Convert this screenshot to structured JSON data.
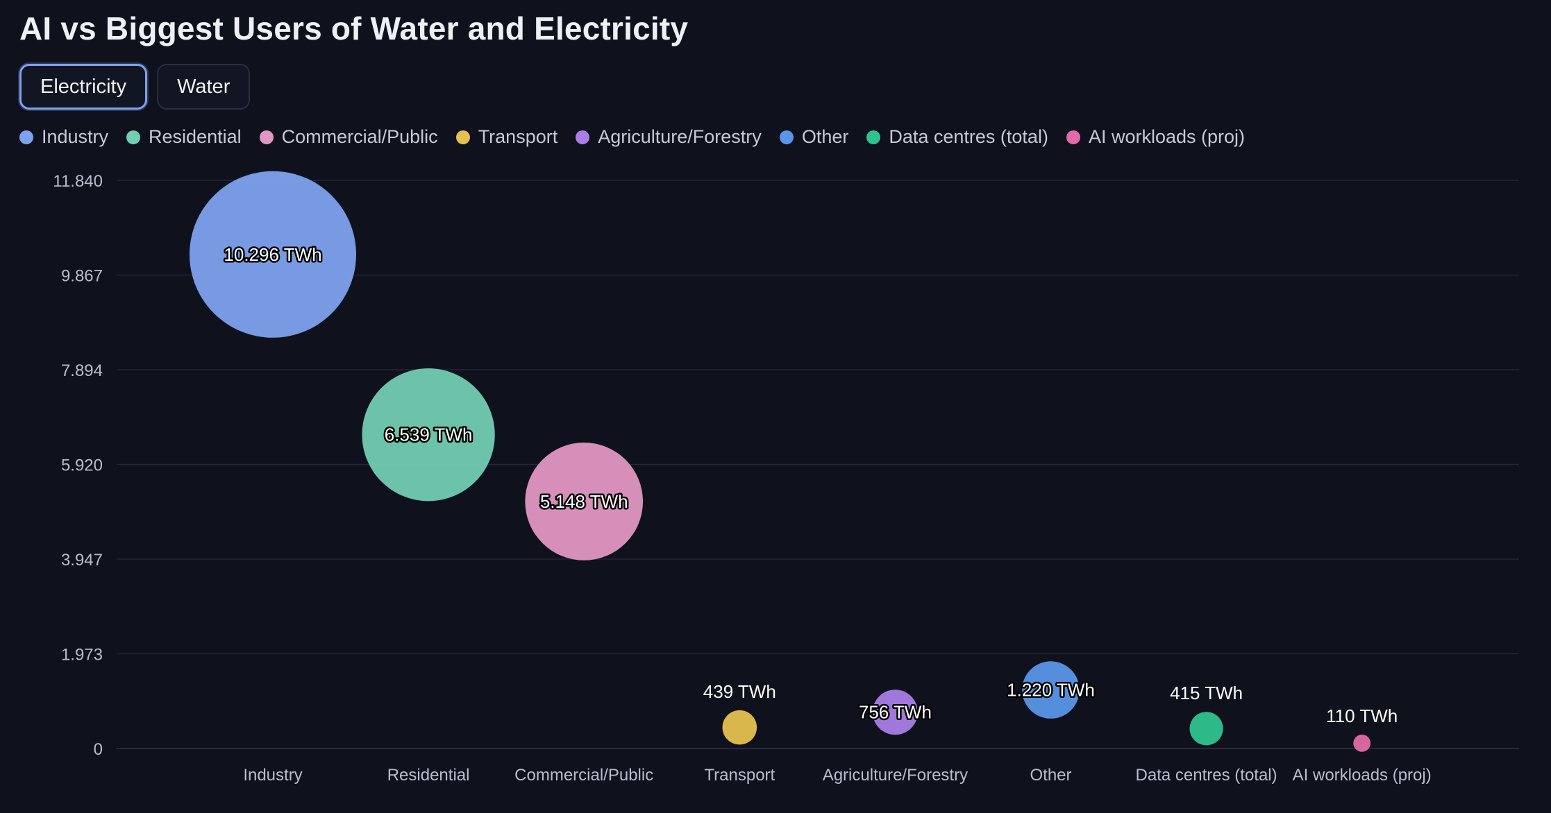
{
  "title": "AI vs Biggest Users of Water and Electricity",
  "tabs": [
    {
      "label": "Electricity",
      "active": true
    },
    {
      "label": "Water",
      "active": false
    }
  ],
  "legend": [
    {
      "label": "Industry",
      "color": "#7ea2ee"
    },
    {
      "label": "Residential",
      "color": "#72cdb2"
    },
    {
      "label": "Commercial/Public",
      "color": "#e097c2"
    },
    {
      "label": "Transport",
      "color": "#e6c14f"
    },
    {
      "label": "Agriculture/Forestry",
      "color": "#a97ee6"
    },
    {
      "label": "Other",
      "color": "#5896e8"
    },
    {
      "label": "Data centres (total)",
      "color": "#2fc48e"
    },
    {
      "label": "AI workloads (proj)",
      "color": "#e26aa8"
    }
  ],
  "chart_data": {
    "type": "bubble",
    "unit": "TWh",
    "y_ticks": [
      "0",
      "1.973",
      "3.947",
      "5.920",
      "7.894",
      "9.867",
      "11.840"
    ],
    "ylim": [
      0,
      11840
    ],
    "grid": true,
    "legend_position": "top",
    "categories": [
      "Industry",
      "Residential",
      "Commercial/Public",
      "Transport",
      "Agriculture/Forestry",
      "Other",
      "Data centres (total)",
      "AI workloads (proj)"
    ],
    "values": [
      10296,
      6539,
      5148,
      439,
      756,
      1220,
      415,
      110
    ],
    "labels": [
      "10.296 TWh",
      "6.539 TWh",
      "5.148 TWh",
      "439 TWh",
      "756 TWh",
      "1.220 TWh",
      "415 TWh",
      "110 TWh"
    ],
    "colors": [
      "#7ea2ee",
      "#72cdb2",
      "#e097c2",
      "#e6c14f",
      "#a97ee6",
      "#5896e8",
      "#2fc48e",
      "#e26aa8"
    ]
  }
}
